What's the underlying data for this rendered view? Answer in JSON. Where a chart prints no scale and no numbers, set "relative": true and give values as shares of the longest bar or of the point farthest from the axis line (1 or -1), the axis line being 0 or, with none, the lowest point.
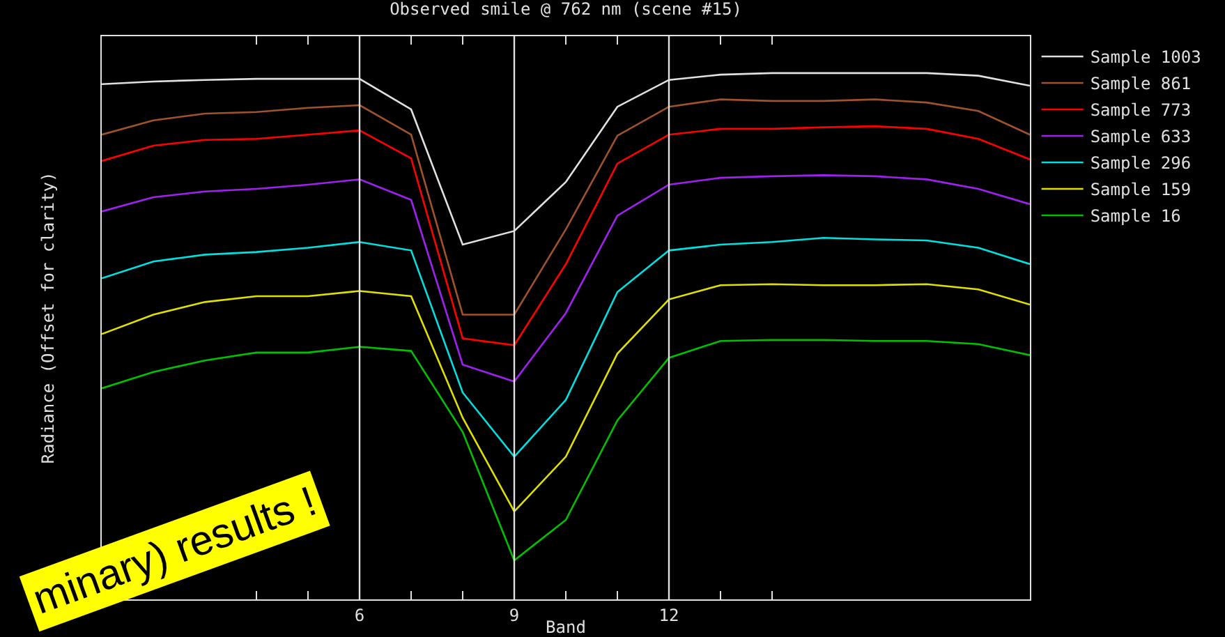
{
  "chart_data": {
    "type": "line",
    "relative": true,
    "title": "Observed smile @ 762 nm (scene #15)",
    "xlabel": "Band",
    "ylabel": "Radiance (Offset for clarity)",
    "x": [
      1,
      2,
      3,
      4,
      5,
      6,
      7,
      8,
      9,
      10,
      11,
      12,
      13,
      14,
      15,
      16,
      17,
      18,
      19
    ],
    "xlim": [
      1,
      19
    ],
    "xticks": [
      {
        "value": 4,
        "label": null
      },
      {
        "value": 5,
        "label": null
      },
      6,
      {
        "value": 7,
        "label": null
      },
      {
        "value": 8,
        "label": null
      },
      9,
      {
        "value": 10,
        "label": null
      },
      {
        "value": 11,
        "label": null
      },
      12,
      {
        "value": 13,
        "label": null
      },
      {
        "value": 14,
        "label": null
      }
    ],
    "series": [
      {
        "name": "Sample 1003",
        "color": "#e0e0e0",
        "values": [
          0.979,
          0.984,
          0.987,
          0.989,
          0.989,
          0.989,
          0.931,
          0.674,
          0.7,
          0.793,
          0.936,
          0.987,
          0.997,
          1,
          1,
          1,
          1,
          0.995,
          0.976
        ]
      },
      {
        "name": "Sample 861",
        "color": "#a0522d",
        "values": [
          0.883,
          0.91,
          0.923,
          0.926,
          0.934,
          0.939,
          0.883,
          0.541,
          0.541,
          0.703,
          0.881,
          0.936,
          0.95,
          0.947,
          0.947,
          0.95,
          0.944,
          0.928,
          0.883
        ]
      },
      {
        "name": "Sample 773",
        "color": "#ff0000",
        "values": [
          0.833,
          0.862,
          0.873,
          0.875,
          0.883,
          0.891,
          0.838,
          0.496,
          0.483,
          0.637,
          0.828,
          0.883,
          0.894,
          0.894,
          0.897,
          0.899,
          0.894,
          0.875,
          0.836
        ]
      },
      {
        "name": "Sample 633",
        "color": "#a020f0",
        "values": [
          0.737,
          0.764,
          0.775,
          0.78,
          0.788,
          0.798,
          0.759,
          0.446,
          0.414,
          0.544,
          0.729,
          0.788,
          0.801,
          0.804,
          0.806,
          0.804,
          0.798,
          0.78,
          0.751
        ]
      },
      {
        "name": "Sample 296",
        "color": "#00e0e0",
        "values": [
          0.61,
          0.642,
          0.655,
          0.66,
          0.668,
          0.679,
          0.663,
          0.393,
          0.271,
          0.379,
          0.584,
          0.663,
          0.674,
          0.679,
          0.687,
          0.684,
          0.682,
          0.668,
          0.637
        ]
      },
      {
        "name": "Sample 159",
        "color": "#e0e000",
        "values": [
          0.504,
          0.541,
          0.565,
          0.576,
          0.576,
          0.586,
          0.576,
          0.345,
          0.167,
          0.271,
          0.467,
          0.57,
          0.597,
          0.599,
          0.597,
          0.597,
          0.599,
          0.589,
          0.56
        ]
      },
      {
        "name": "Sample 16",
        "color": "#00c000",
        "values": [
          0.401,
          0.432,
          0.454,
          0.469,
          0.469,
          0.48,
          0.472,
          0.318,
          0.074,
          0.151,
          0.34,
          0.459,
          0.491,
          0.493,
          0.493,
          0.491,
          0.491,
          0.485,
          0.464
        ]
      }
    ],
    "ref_lines": [
      {
        "axis": "x",
        "value": 6,
        "color": "#e0e0e0"
      },
      {
        "axis": "x",
        "value": 9,
        "color": "#e0e0e0"
      },
      {
        "axis": "x",
        "value": 12,
        "color": "#e0e0e0"
      }
    ],
    "annotations": [
      "minary) results !"
    ],
    "legend": "top right",
    "grid": false,
    "marker": "none",
    "line_style": "solid"
  }
}
